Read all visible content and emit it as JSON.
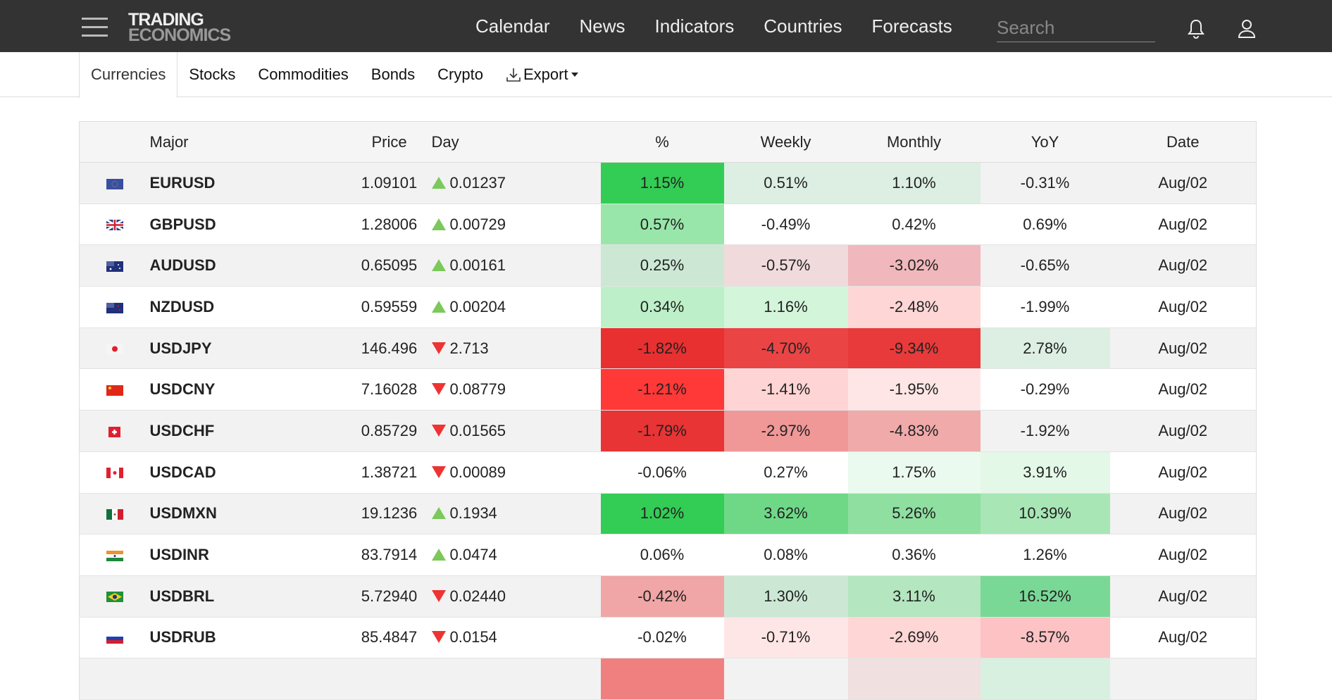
{
  "header": {
    "logo_line1": "TRADING",
    "logo_line2": "ECONOMICS",
    "nav": [
      "Calendar",
      "News",
      "Indicators",
      "Countries",
      "Forecasts"
    ],
    "search_placeholder": "Search"
  },
  "subnav": {
    "tabs": [
      "Currencies",
      "Stocks",
      "Commodities",
      "Bonds",
      "Crypto"
    ],
    "export_label": "Export"
  },
  "table": {
    "headers": [
      "",
      "Major",
      "Price",
      "Day",
      "%",
      "Weekly",
      "Monthly",
      "YoY",
      "Date"
    ],
    "rows": [
      {
        "flag": "eu",
        "symbol": "EURUSD",
        "price": "1.09101",
        "dir": "up",
        "day": "0.01237",
        "pct": "1.15%",
        "weekly": "0.51%",
        "monthly": "1.10%",
        "yoy": "-0.31%",
        "date": "Aug/02",
        "colors": [
          "#33cc55",
          "#dcefe2",
          "#dcefe2",
          ""
        ]
      },
      {
        "flag": "gb",
        "symbol": "GBPUSD",
        "price": "1.28006",
        "dir": "up",
        "day": "0.00729",
        "pct": "0.57%",
        "weekly": "-0.49%",
        "monthly": "0.42%",
        "yoy": "0.69%",
        "date": "Aug/02",
        "colors": [
          "#99e6aa",
          "",
          "",
          ""
        ]
      },
      {
        "flag": "au",
        "symbol": "AUDUSD",
        "price": "0.65095",
        "dir": "up",
        "day": "0.00161",
        "pct": "0.25%",
        "weekly": "-0.57%",
        "monthly": "-3.02%",
        "yoy": "-0.65%",
        "date": "Aug/02",
        "colors": [
          "#cce8d5",
          "#f0dadc",
          "#f0b8bc",
          ""
        ]
      },
      {
        "flag": "nz",
        "symbol": "NZDUSD",
        "price": "0.59559",
        "dir": "up",
        "day": "0.00204",
        "pct": "0.34%",
        "weekly": "1.16%",
        "monthly": "-2.48%",
        "yoy": "-1.99%",
        "date": "Aug/02",
        "colors": [
          "#bdf0c8",
          "#d3f5da",
          "#ffd6d6",
          ""
        ]
      },
      {
        "flag": "jp",
        "symbol": "USDJPY",
        "price": "146.496",
        "dir": "down",
        "day": "2.713",
        "pct": "-1.82%",
        "weekly": "-4.70%",
        "monthly": "-9.34%",
        "yoy": "2.78%",
        "date": "Aug/02",
        "colors": [
          "#e83030",
          "#ea4444",
          "#e83a3a",
          "#dcefe2"
        ]
      },
      {
        "flag": "cn",
        "symbol": "USDCNY",
        "price": "7.16028",
        "dir": "down",
        "day": "0.08779",
        "pct": "-1.21%",
        "weekly": "-1.41%",
        "monthly": "-1.95%",
        "yoy": "-0.29%",
        "date": "Aug/02",
        "colors": [
          "#ff3838",
          "#ffd4d4",
          "#ffe6e6",
          ""
        ]
      },
      {
        "flag": "ch",
        "symbol": "USDCHF",
        "price": "0.85729",
        "dir": "down",
        "day": "0.01565",
        "pct": "-1.79%",
        "weekly": "-2.97%",
        "monthly": "-4.83%",
        "yoy": "-1.92%",
        "date": "Aug/02",
        "colors": [
          "#e83434",
          "#f09898",
          "#f0aaaa",
          ""
        ]
      },
      {
        "flag": "ca",
        "symbol": "USDCAD",
        "price": "1.38721",
        "dir": "down",
        "day": "0.00089",
        "pct": "-0.06%",
        "weekly": "0.27%",
        "monthly": "1.75%",
        "yoy": "3.91%",
        "date": "Aug/02",
        "colors": [
          "",
          "",
          "#ebfaee",
          "#e4f8e8"
        ]
      },
      {
        "flag": "mx",
        "symbol": "USDMXN",
        "price": "19.1236",
        "dir": "up",
        "day": "0.1934",
        "pct": "1.02%",
        "weekly": "3.62%",
        "monthly": "5.26%",
        "yoy": "10.39%",
        "date": "Aug/02",
        "colors": [
          "#33cc55",
          "#6fd887",
          "#8fdfa0",
          "#a8e6b6"
        ]
      },
      {
        "flag": "in",
        "symbol": "USDINR",
        "price": "83.7914",
        "dir": "up",
        "day": "0.0474",
        "pct": "0.06%",
        "weekly": "0.08%",
        "monthly": "0.36%",
        "yoy": "1.26%",
        "date": "Aug/02",
        "colors": [
          "",
          "",
          "",
          ""
        ]
      },
      {
        "flag": "br",
        "symbol": "USDBRL",
        "price": "5.72940",
        "dir": "down",
        "day": "0.02440",
        "pct": "-0.42%",
        "weekly": "1.30%",
        "monthly": "3.11%",
        "yoy": "16.52%",
        "date": "Aug/02",
        "colors": [
          "#f0a6a6",
          "#cce8d5",
          "#b4e6c0",
          "#7ad896"
        ]
      },
      {
        "flag": "ru",
        "symbol": "USDRUB",
        "price": "85.4847",
        "dir": "down",
        "day": "0.0154",
        "pct": "-0.02%",
        "weekly": "-0.71%",
        "monthly": "-2.69%",
        "yoy": "-8.57%",
        "date": "Aug/02",
        "colors": [
          "",
          "#ffe6e6",
          "#ffd6d6",
          "#fcc2c4"
        ]
      }
    ]
  }
}
